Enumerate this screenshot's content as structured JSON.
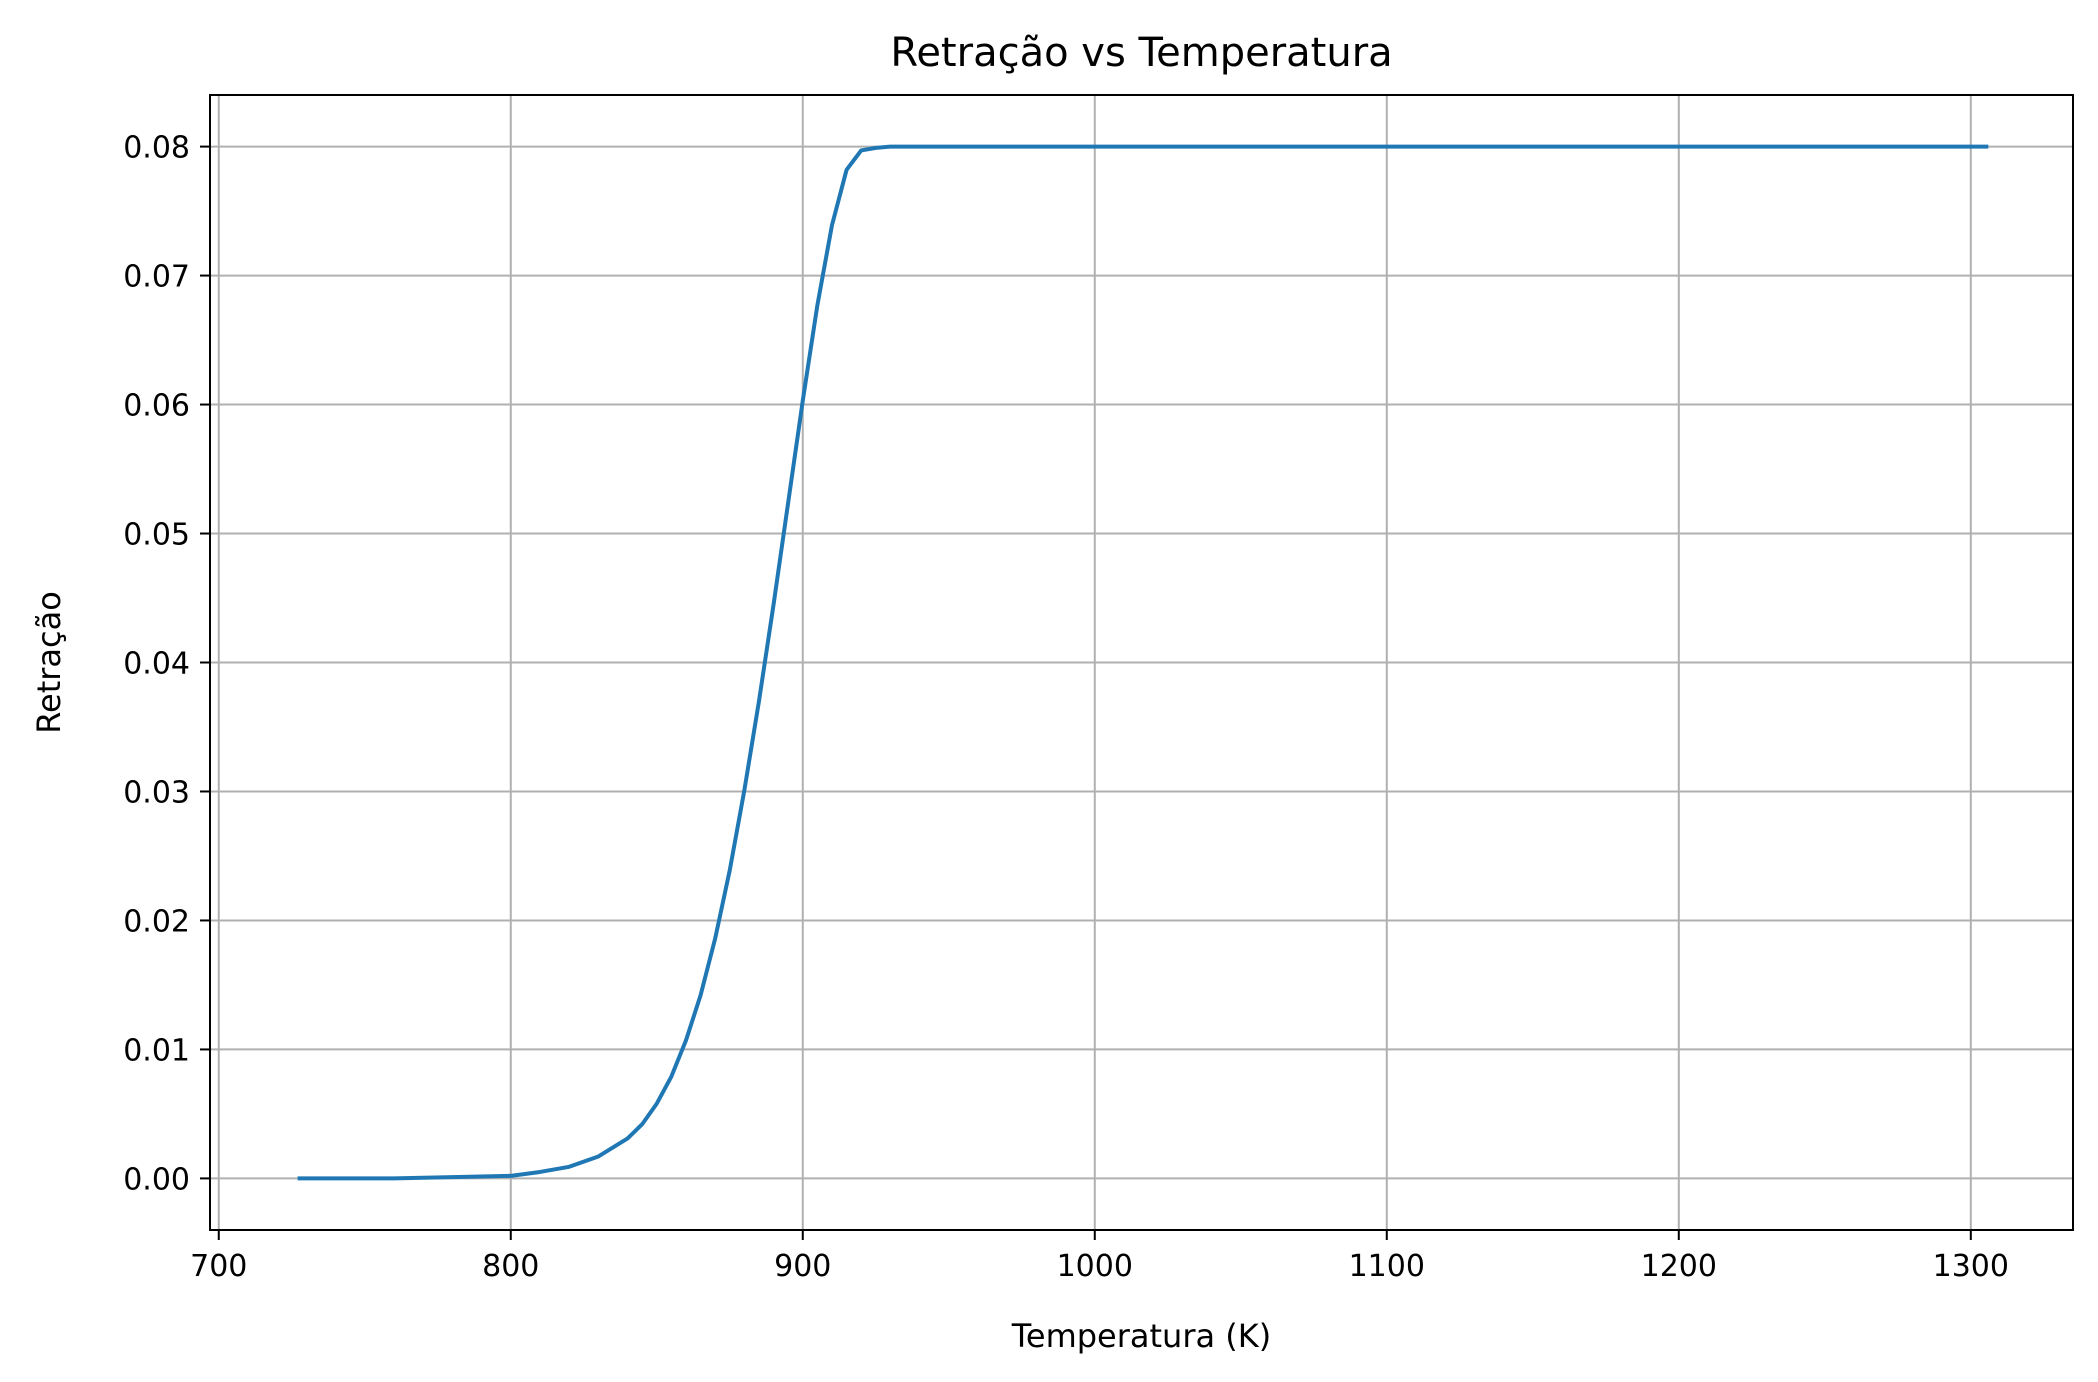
{
  "chart_data": {
    "type": "line",
    "title": "Retração vs Temperatura",
    "xlabel": "Temperatura (K)",
    "ylabel": "Retração",
    "xlim": [
      697,
      1335
    ],
    "ylim": [
      -0.004,
      0.084
    ],
    "xticks": [
      700,
      800,
      900,
      1000,
      1100,
      1200,
      1300
    ],
    "xtick_labels": [
      "700",
      "800",
      "900",
      "1000",
      "1100",
      "1200",
      "1300"
    ],
    "yticks": [
      0.0,
      0.01,
      0.02,
      0.03,
      0.04,
      0.05,
      0.06,
      0.07,
      0.08
    ],
    "ytick_labels": [
      "0.00",
      "0.01",
      "0.02",
      "0.03",
      "0.04",
      "0.05",
      "0.06",
      "0.07",
      "0.08"
    ],
    "grid": true,
    "line_color": "#1f77b4",
    "series": [
      {
        "x": [
          727,
          760,
          780,
          800,
          810,
          820,
          830,
          840,
          845,
          850,
          855,
          860,
          865,
          870,
          875,
          880,
          885,
          890,
          895,
          900,
          905,
          910,
          915,
          920,
          925,
          930,
          935,
          940,
          960,
          1000,
          1100,
          1200,
          1306
        ],
        "y": [
          0.0,
          0.0,
          0.0001,
          0.0002,
          0.0005,
          0.0009,
          0.0017,
          0.0031,
          0.0042,
          0.0058,
          0.0079,
          0.0107,
          0.0142,
          0.0186,
          0.0239,
          0.0301,
          0.037,
          0.0445,
          0.0524,
          0.0603,
          0.0677,
          0.0739,
          0.0782,
          0.0797,
          0.0799,
          0.08,
          0.08,
          0.08,
          0.08,
          0.08,
          0.08,
          0.08,
          0.08
        ]
      }
    ]
  }
}
